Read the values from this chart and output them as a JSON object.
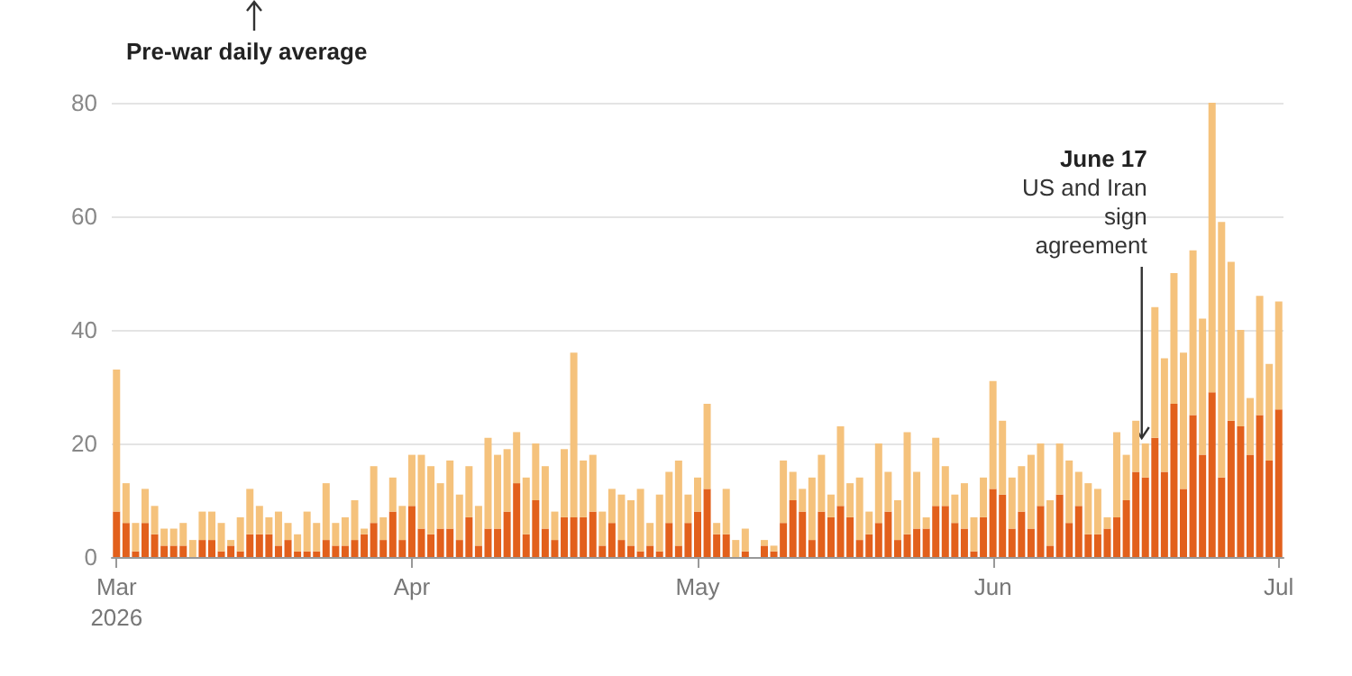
{
  "chart_data": {
    "type": "bar",
    "stacked": true,
    "grid": "y",
    "annotations": [
      "Pre-war daily average",
      {
        "text": "June 17\nUS and Iran\nsign\nagreement",
        "x": "2026-06-17",
        "y": 20
      }
    ],
    "x": [
      "2026-03-01",
      "2026-03-02",
      "2026-03-03",
      "2026-03-04",
      "2026-03-05",
      "2026-03-06",
      "2026-03-07",
      "2026-03-08",
      "2026-03-09",
      "2026-03-10",
      "2026-03-11",
      "2026-03-12",
      "2026-03-13",
      "2026-03-14",
      "2026-03-15",
      "2026-03-16",
      "2026-03-17",
      "2026-03-18",
      "2026-03-19",
      "2026-03-20",
      "2026-03-21",
      "2026-03-22",
      "2026-03-23",
      "2026-03-24",
      "2026-03-25",
      "2026-03-26",
      "2026-03-27",
      "2026-03-28",
      "2026-03-29",
      "2026-03-30",
      "2026-03-31",
      "2026-04-01",
      "2026-04-02",
      "2026-04-03",
      "2026-04-04",
      "2026-04-05",
      "2026-04-06",
      "2026-04-07",
      "2026-04-08",
      "2026-04-09",
      "2026-04-10",
      "2026-04-11",
      "2026-04-12",
      "2026-04-13",
      "2026-04-14",
      "2026-04-15",
      "2026-04-16",
      "2026-04-17",
      "2026-04-18",
      "2026-04-19",
      "2026-04-20",
      "2026-04-21",
      "2026-04-22",
      "2026-04-23",
      "2026-04-24",
      "2026-04-25",
      "2026-04-26",
      "2026-04-27",
      "2026-04-28",
      "2026-04-29",
      "2026-04-30",
      "2026-05-01",
      "2026-05-02",
      "2026-05-03",
      "2026-05-04",
      "2026-05-05",
      "2026-05-06",
      "2026-05-07",
      "2026-05-08",
      "2026-05-09",
      "2026-05-10",
      "2026-05-11",
      "2026-05-12",
      "2026-05-13",
      "2026-05-14",
      "2026-05-15",
      "2026-05-16",
      "2026-05-17",
      "2026-05-18",
      "2026-05-19",
      "2026-05-20",
      "2026-05-21",
      "2026-05-22",
      "2026-05-23",
      "2026-05-24",
      "2026-05-25",
      "2026-05-26",
      "2026-05-27",
      "2026-05-28",
      "2026-05-29",
      "2026-05-30",
      "2026-05-31",
      "2026-06-01",
      "2026-06-02",
      "2026-06-03",
      "2026-06-04",
      "2026-06-05",
      "2026-06-06",
      "2026-06-07",
      "2026-06-08",
      "2026-06-09",
      "2026-06-10",
      "2026-06-11",
      "2026-06-12",
      "2026-06-13",
      "2026-06-14",
      "2026-06-15",
      "2026-06-16",
      "2026-06-17",
      "2026-06-18",
      "2026-06-19",
      "2026-06-20",
      "2026-06-21",
      "2026-06-22",
      "2026-06-23",
      "2026-06-24",
      "2026-06-25",
      "2026-06-26",
      "2026-06-27",
      "2026-06-28",
      "2026-06-29",
      "2026-06-30",
      "2026-07-01"
    ],
    "series": [
      {
        "color": "#e2601c",
        "values": [
          8,
          6,
          1,
          6,
          4,
          2,
          2,
          2,
          0,
          3,
          3,
          1,
          2,
          1,
          4,
          4,
          4,
          2,
          3,
          1,
          1,
          1,
          3,
          2,
          2,
          3,
          4,
          6,
          3,
          8,
          3,
          9,
          5,
          4,
          5,
          5,
          3,
          7,
          2,
          5,
          5,
          8,
          13,
          4,
          10,
          5,
          3,
          7,
          7,
          7,
          8,
          2,
          6,
          3,
          2,
          1,
          2,
          1,
          6,
          2,
          6,
          8,
          12,
          4,
          4,
          0,
          1,
          0,
          2,
          1,
          6,
          10,
          8,
          3,
          8,
          7,
          9,
          7,
          3,
          4,
          6,
          8,
          3,
          4,
          5,
          5,
          9,
          9,
          6,
          5,
          1,
          7,
          12,
          11,
          5,
          8,
          5,
          9,
          2,
          11,
          6,
          9,
          4,
          4,
          5,
          7,
          10,
          15,
          14,
          21,
          15,
          27,
          12,
          25,
          18,
          29,
          14,
          24,
          23,
          18,
          25,
          17,
          26
        ]
      },
      {
        "color": "#f5c27c",
        "values": [
          25,
          7,
          5,
          6,
          5,
          3,
          3,
          4,
          3,
          5,
          5,
          5,
          1,
          6,
          8,
          5,
          3,
          6,
          3,
          3,
          7,
          5,
          10,
          4,
          5,
          7,
          1,
          10,
          4,
          6,
          6,
          9,
          13,
          12,
          8,
          12,
          8,
          9,
          7,
          16,
          13,
          11,
          9,
          10,
          10,
          11,
          5,
          12,
          29,
          10,
          10,
          6,
          6,
          8,
          8,
          11,
          4,
          10,
          9,
          15,
          5,
          6,
          15,
          2,
          8,
          3,
          4,
          0,
          1,
          1,
          11,
          5,
          4,
          11,
          10,
          4,
          14,
          6,
          11,
          4,
          14,
          7,
          7,
          18,
          10,
          2,
          12,
          7,
          5,
          8,
          6,
          7,
          19,
          13,
          9,
          8,
          13,
          11,
          8,
          9,
          11,
          6,
          9,
          8,
          2,
          15,
          8,
          9,
          6,
          23,
          20,
          23,
          24,
          29,
          24,
          51,
          45,
          28,
          17,
          10,
          21,
          17,
          19
        ]
      }
    ],
    "xlim": [
      "2026-02-28T12:00",
      "2026-07-01T12:00"
    ],
    "xticks": [
      {
        "value": "2026-03-01",
        "label": "Mar\n2026"
      },
      {
        "value": "2026-04-01",
        "label": "Apr"
      },
      {
        "value": "2026-05-01",
        "label": "May"
      },
      {
        "value": "2026-06-01",
        "label": "Jun"
      },
      {
        "value": "2026-07-01",
        "label": "Jul"
      }
    ],
    "ylim": [
      0,
      80
    ],
    "yticks": [
      0,
      20,
      40,
      60,
      80
    ]
  }
}
